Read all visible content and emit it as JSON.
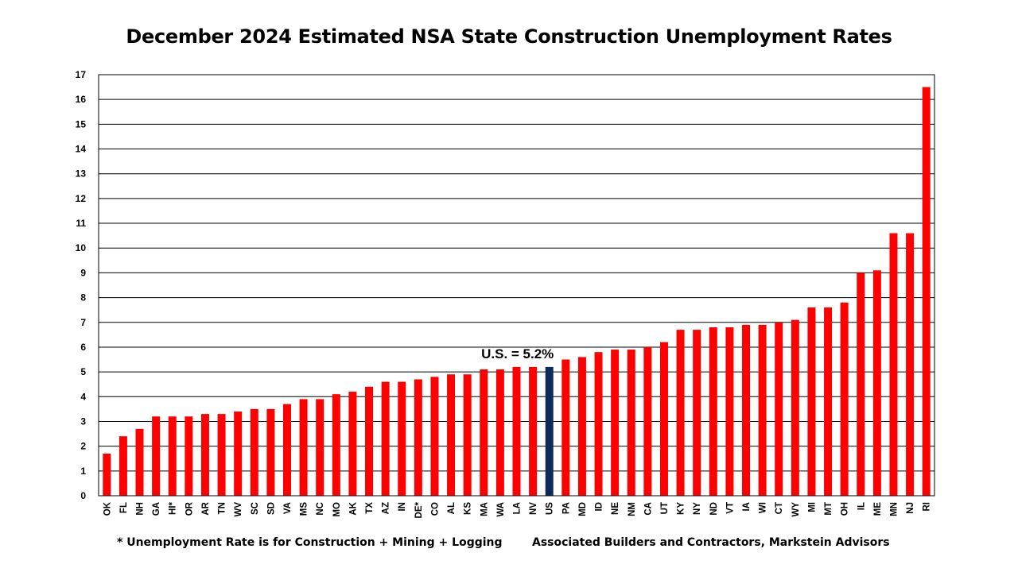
{
  "chart_data": {
    "type": "bar",
    "title": "December 2024 Estimated NSA State Construction Unemployment Rates",
    "xlabel": "",
    "ylabel": "",
    "ylim": [
      0,
      17
    ],
    "yticks": [
      0,
      1,
      2,
      3,
      4,
      5,
      6,
      7,
      8,
      9,
      10,
      11,
      12,
      13,
      14,
      15,
      16,
      17
    ],
    "grid": true,
    "categories": [
      "OK",
      "FL",
      "NH",
      "GA",
      "HI*",
      "OR",
      "AR",
      "TN",
      "WV",
      "SC",
      "SD",
      "VA",
      "MS",
      "NC",
      "MO",
      "AK",
      "TX",
      "AZ",
      "IN",
      "DE*",
      "CO",
      "AL",
      "KS",
      "MA",
      "WA",
      "LA",
      "NV",
      "US",
      "PA",
      "MD",
      "ID",
      "NE",
      "NM",
      "CA",
      "UT",
      "KY",
      "NY",
      "ND",
      "VT",
      "IA",
      "WI",
      "CT",
      "WY",
      "MI",
      "MT",
      "OH",
      "IL",
      "ME",
      "MN",
      "NJ",
      "RI"
    ],
    "values": [
      1.7,
      2.4,
      2.7,
      3.2,
      3.2,
      3.2,
      3.3,
      3.3,
      3.4,
      3.5,
      3.5,
      3.7,
      3.9,
      3.9,
      4.1,
      4.2,
      4.4,
      4.6,
      4.6,
      4.7,
      4.8,
      4.9,
      4.9,
      5.1,
      5.1,
      5.2,
      5.2,
      5.2,
      5.5,
      5.6,
      5.8,
      5.9,
      5.9,
      6.0,
      6.2,
      6.7,
      6.7,
      6.8,
      6.8,
      6.9,
      6.9,
      7.0,
      7.1,
      7.6,
      7.6,
      7.8,
      9.0,
      9.1,
      10.6,
      10.6,
      16.5
    ],
    "highlight_category": "US",
    "annotation": "U.S. = 5.2%",
    "colors": {
      "bar": "#ff0000",
      "highlight": "#0c2a5c",
      "grid": "#000000",
      "text": "#000000"
    }
  },
  "footnotes": {
    "left": "* Unemployment Rate is for Construction + Mining + Logging",
    "right": "Associated Builders and Contractors, Markstein Advisors"
  }
}
